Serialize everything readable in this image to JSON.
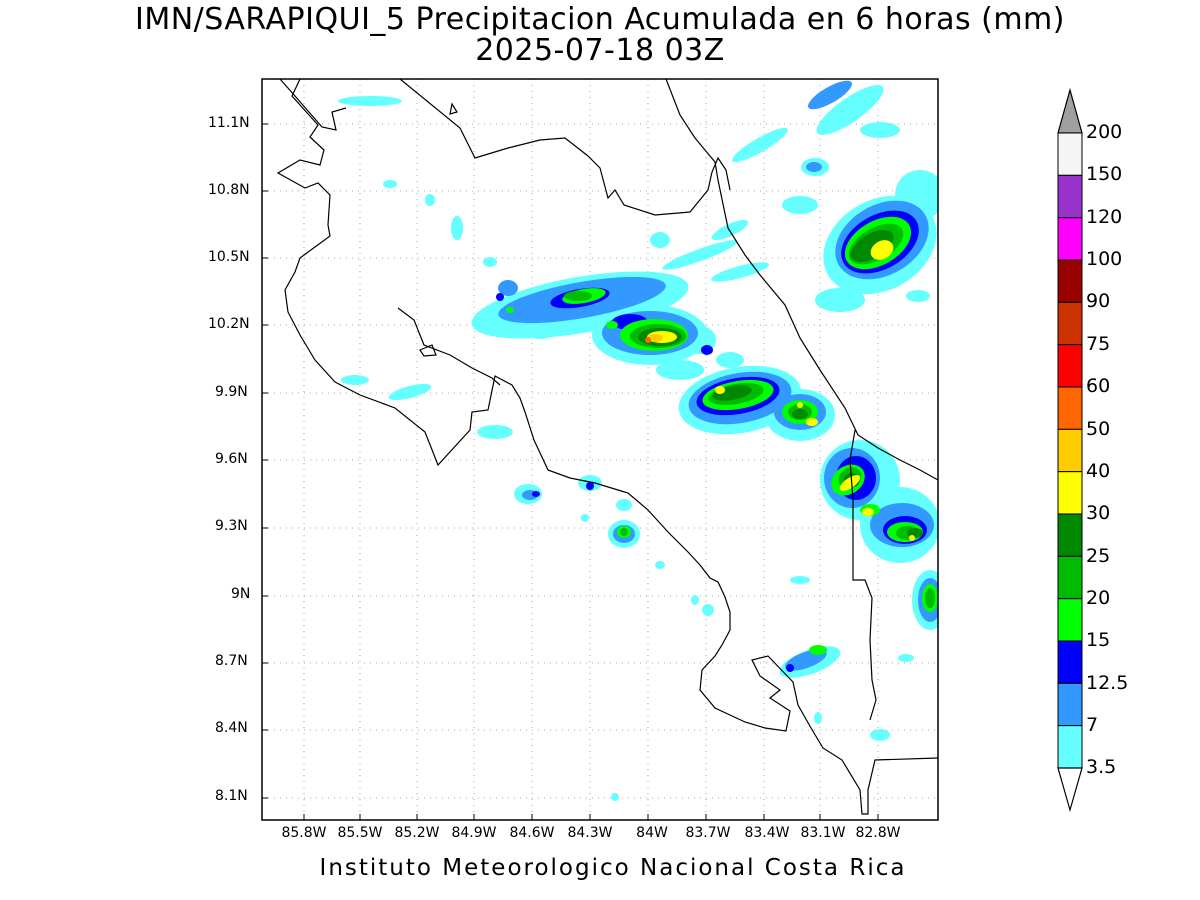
{
  "title": {
    "line1": "IMN/SARAPIQUI_5 Precipitacion Acumulada en 6 horas (mm)",
    "line2": "2025-07-18 03Z"
  },
  "axes": {
    "y_ticks": [
      "11.1N",
      "10.8N",
      "10.5N",
      "10.2N",
      "9.9N",
      "9.6N",
      "9.3N",
      "9N",
      "8.7N",
      "8.4N",
      "8.1N"
    ],
    "x_ticks": [
      "85.8W",
      "85.5W",
      "85.2W",
      "84.9W",
      "84.6W",
      "84.3W",
      "84W",
      "83.7W",
      "83.4W",
      "83.1W",
      "82.8W"
    ]
  },
  "colorbar": {
    "labels": [
      "200",
      "150",
      "120",
      "100",
      "90",
      "75",
      "60",
      "50",
      "40",
      "30",
      "25",
      "20",
      "15",
      "12.5",
      "7",
      "3.5"
    ],
    "colors": [
      "#f5f5f5",
      "#9933cc",
      "#ff00ff",
      "#990000",
      "#cc3300",
      "#ff0000",
      "#ff6600",
      "#ffcc00",
      "#ffff00",
      "#008800",
      "#00bb00",
      "#00ff00",
      "#0000ff",
      "#3399ff",
      "#66ffff"
    ],
    "over_color": "#a0a0a0",
    "under_color": "#ffffff"
  },
  "credit": "Instituto Meteorologico Nacional Costa Rica"
}
